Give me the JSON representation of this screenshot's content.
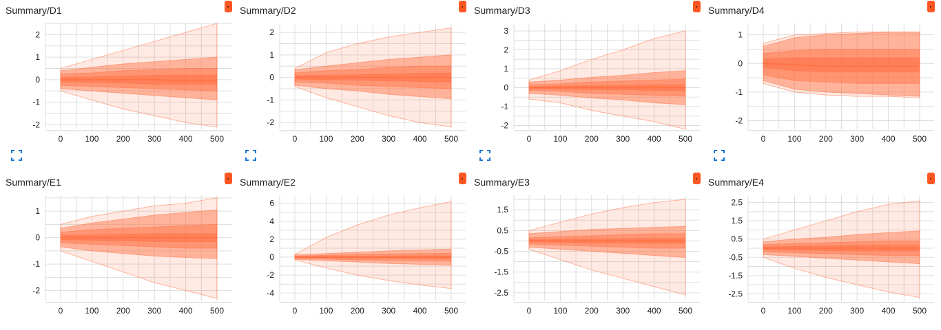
{
  "colors": {
    "accent": "#ff7043",
    "badge": "#ff5722",
    "expand_icon": "#1976d2",
    "grid": "#dddddd"
  },
  "icons": {
    "badge": "orange-run-badge",
    "expand": "fullscreen-expand-icon"
  },
  "panels": [
    {
      "title": "Summary/D1",
      "x_ticks": [
        "0",
        "100",
        "200",
        "300",
        "400",
        "500"
      ],
      "y_ticks": [
        "2",
        "1",
        "0",
        "-1",
        "-2"
      ]
    },
    {
      "title": "Summary/D2",
      "x_ticks": [
        "0",
        "100",
        "200",
        "300",
        "400",
        "500"
      ],
      "y_ticks": [
        "2",
        "1",
        "0",
        "-1",
        "-2"
      ]
    },
    {
      "title": "Summary/D3",
      "x_ticks": [
        "0",
        "100",
        "200",
        "300",
        "400",
        "500"
      ],
      "y_ticks": [
        "3",
        "2",
        "1",
        "0",
        "-1",
        "-2"
      ]
    },
    {
      "title": "Summary/D4",
      "x_ticks": [
        "0",
        "100",
        "200",
        "300",
        "400",
        "500"
      ],
      "y_ticks": [
        "1",
        "0",
        "-1",
        "-2"
      ]
    },
    {
      "title": "Summary/E1",
      "x_ticks": [
        "0",
        "100",
        "200",
        "300",
        "400",
        "500"
      ],
      "y_ticks": [
        "1",
        "0",
        "-1",
        "-2"
      ]
    },
    {
      "title": "Summary/E2",
      "x_ticks": [
        "0",
        "100",
        "200",
        "300",
        "400",
        "500"
      ],
      "y_ticks": [
        "6",
        "4",
        "2",
        "0",
        "-2",
        "-4"
      ]
    },
    {
      "title": "Summary/E3",
      "x_ticks": [
        "0",
        "100",
        "200",
        "300",
        "400",
        "500"
      ],
      "y_ticks": [
        "1.5",
        "0.5",
        "-0.5",
        "-1.5",
        "-2.5"
      ]
    },
    {
      "title": "Summary/E4",
      "x_ticks": [
        "0",
        "100",
        "200",
        "300",
        "400",
        "500"
      ],
      "y_ticks": [
        "2.5",
        "1.5",
        "0.5",
        "-0.5",
        "-1.5",
        "-2.5"
      ]
    }
  ],
  "chart_data": [
    {
      "type": "area",
      "title": "Summary/D1",
      "x": [
        0,
        100,
        200,
        300,
        400,
        500
      ],
      "xlim": [
        0,
        500
      ],
      "ylim": [
        -2.2,
        2.5
      ],
      "y_ticks": [
        2,
        1,
        0,
        -1,
        -2
      ],
      "bands": [
        {
          "lower": [
            -0.5,
            -0.9,
            -1.3,
            -1.6,
            -1.9,
            -2.1
          ],
          "upper": [
            0.5,
            0.9,
            1.3,
            1.7,
            2.1,
            2.5
          ]
        },
        {
          "lower": [
            -0.4,
            -0.5,
            -0.6,
            -0.7,
            -0.8,
            -0.9
          ],
          "upper": [
            0.4,
            0.55,
            0.7,
            0.8,
            0.9,
            1.0
          ]
        },
        {
          "lower": [
            -0.25,
            -0.3,
            -0.35,
            -0.4,
            -0.45,
            -0.5
          ],
          "upper": [
            0.25,
            0.3,
            0.4,
            0.45,
            0.5,
            0.5
          ]
        },
        {
          "lower": [
            -0.1,
            -0.12,
            -0.15,
            -0.2,
            -0.2,
            -0.2
          ],
          "upper": [
            0.1,
            0.12,
            0.15,
            0.2,
            0.2,
            0.2
          ]
        }
      ],
      "median": [
        0,
        0,
        0,
        0,
        -0.05,
        -0.05
      ]
    },
    {
      "type": "area",
      "title": "Summary/D2",
      "x": [
        0,
        100,
        200,
        300,
        400,
        500
      ],
      "xlim": [
        0,
        500
      ],
      "ylim": [
        -2.3,
        2.4
      ],
      "y_ticks": [
        2,
        1,
        0,
        -1,
        -2
      ],
      "bands": [
        {
          "lower": [
            -0.4,
            -0.9,
            -1.3,
            -1.7,
            -2.0,
            -2.2
          ],
          "upper": [
            0.4,
            1.1,
            1.5,
            1.8,
            2.0,
            2.2
          ]
        },
        {
          "lower": [
            -0.35,
            -0.5,
            -0.6,
            -0.75,
            -0.85,
            -0.95
          ],
          "upper": [
            0.35,
            0.5,
            0.65,
            0.8,
            0.9,
            1.0
          ]
        },
        {
          "lower": [
            -0.2,
            -0.25,
            -0.35,
            -0.4,
            -0.45,
            -0.5
          ],
          "upper": [
            0.2,
            0.3,
            0.35,
            0.45,
            0.5,
            0.5
          ]
        },
        {
          "lower": [
            -0.08,
            -0.1,
            -0.12,
            -0.15,
            -0.18,
            -0.2
          ],
          "upper": [
            0.08,
            0.1,
            0.12,
            0.15,
            0.18,
            0.2
          ]
        }
      ],
      "median": [
        0,
        0,
        0,
        0,
        0,
        0
      ]
    },
    {
      "type": "area",
      "title": "Summary/D3",
      "x": [
        0,
        100,
        200,
        300,
        400,
        500
      ],
      "xlim": [
        0,
        500
      ],
      "ylim": [
        -2.2,
        3.4
      ],
      "y_ticks": [
        3,
        2,
        1,
        0,
        -1,
        -2
      ],
      "bands": [
        {
          "lower": [
            -0.6,
            -0.8,
            -1.2,
            -1.5,
            -1.8,
            -2.2
          ],
          "upper": [
            0.4,
            0.9,
            1.5,
            2.0,
            2.6,
            3.0
          ]
        },
        {
          "lower": [
            -0.3,
            -0.4,
            -0.55,
            -0.65,
            -0.8,
            -0.9
          ],
          "upper": [
            0.3,
            0.4,
            0.55,
            0.65,
            0.8,
            0.9
          ]
        },
        {
          "lower": [
            -0.15,
            -0.2,
            -0.3,
            -0.35,
            -0.4,
            -0.45
          ],
          "upper": [
            0.15,
            0.2,
            0.3,
            0.35,
            0.4,
            0.45
          ]
        },
        {
          "lower": [
            -0.05,
            -0.08,
            -0.1,
            -0.12,
            -0.15,
            -0.15
          ],
          "upper": [
            0.05,
            0.08,
            0.1,
            0.12,
            0.15,
            0.15
          ]
        }
      ],
      "median": [
        0,
        0,
        0,
        0,
        0,
        0
      ]
    },
    {
      "type": "area",
      "title": "Summary/D4",
      "x": [
        0,
        100,
        200,
        300,
        400,
        500
      ],
      "xlim": [
        0,
        500
      ],
      "ylim": [
        -2.3,
        1.4
      ],
      "y_ticks": [
        1,
        0,
        -1,
        -2
      ],
      "bands": [
        {
          "lower": [
            -0.7,
            -1.0,
            -1.1,
            -1.15,
            -1.15,
            -1.2
          ],
          "upper": [
            0.7,
            1.0,
            1.05,
            1.1,
            1.1,
            1.1
          ]
        },
        {
          "lower": [
            -0.6,
            -0.9,
            -1.0,
            -1.05,
            -1.1,
            -1.15
          ],
          "upper": [
            0.6,
            0.9,
            1.0,
            1.05,
            1.1,
            1.1
          ]
        },
        {
          "lower": [
            -0.4,
            -0.6,
            -0.65,
            -0.7,
            -0.7,
            -0.7
          ],
          "upper": [
            0.35,
            0.45,
            0.5,
            0.5,
            0.5,
            0.5
          ]
        },
        {
          "lower": [
            -0.15,
            -0.25,
            -0.3,
            -0.3,
            -0.3,
            -0.3
          ],
          "upper": [
            0.15,
            0.2,
            0.2,
            0.2,
            0.2,
            0.2
          ]
        }
      ],
      "median": [
        0,
        -0.05,
        -0.1,
        -0.1,
        -0.1,
        -0.1
      ]
    },
    {
      "type": "area",
      "title": "Summary/E1",
      "x": [
        0,
        100,
        200,
        300,
        400,
        500
      ],
      "xlim": [
        0,
        500
      ],
      "ylim": [
        -2.4,
        1.6
      ],
      "y_ticks": [
        1,
        0,
        -1,
        -2
      ],
      "bands": [
        {
          "lower": [
            -0.5,
            -0.9,
            -1.3,
            -1.7,
            -2.0,
            -2.3
          ],
          "upper": [
            0.5,
            0.8,
            1.0,
            1.2,
            1.3,
            1.5
          ]
        },
        {
          "lower": [
            -0.35,
            -0.5,
            -0.6,
            -0.7,
            -0.75,
            -0.8
          ],
          "upper": [
            0.35,
            0.55,
            0.7,
            0.85,
            0.95,
            1.05
          ]
        },
        {
          "lower": [
            -0.2,
            -0.25,
            -0.3,
            -0.35,
            -0.4,
            -0.4
          ],
          "upper": [
            0.2,
            0.3,
            0.35,
            0.4,
            0.45,
            0.5
          ]
        },
        {
          "lower": [
            -0.08,
            -0.1,
            -0.12,
            -0.15,
            -0.15,
            -0.15
          ],
          "upper": [
            0.08,
            0.1,
            0.12,
            0.15,
            0.15,
            0.15
          ]
        }
      ],
      "median": [
        0,
        0,
        0,
        0,
        0,
        0
      ]
    },
    {
      "type": "area",
      "title": "Summary/E2",
      "x": [
        0,
        100,
        200,
        300,
        400,
        500
      ],
      "xlim": [
        0,
        500
      ],
      "ylim": [
        -4.9,
        6.9
      ],
      "y_ticks": [
        6,
        4,
        2,
        0,
        -2,
        -4
      ],
      "bands": [
        {
          "lower": [
            -0.3,
            -1.2,
            -2.0,
            -2.6,
            -3.1,
            -3.5
          ],
          "upper": [
            0.3,
            2.2,
            3.6,
            4.7,
            5.5,
            6.2
          ]
        },
        {
          "lower": [
            -0.25,
            -0.4,
            -0.55,
            -0.7,
            -0.8,
            -0.9
          ],
          "upper": [
            0.25,
            0.4,
            0.55,
            0.7,
            0.8,
            0.9
          ]
        },
        {
          "lower": [
            -0.12,
            -0.2,
            -0.3,
            -0.35,
            -0.4,
            -0.45
          ],
          "upper": [
            0.12,
            0.2,
            0.3,
            0.35,
            0.4,
            0.45
          ]
        },
        {
          "lower": [
            -0.05,
            -0.07,
            -0.1,
            -0.12,
            -0.14,
            -0.15
          ],
          "upper": [
            0.05,
            0.07,
            0.1,
            0.12,
            0.14,
            0.15
          ]
        }
      ],
      "median": [
        0,
        0,
        0,
        0,
        0,
        0
      ]
    },
    {
      "type": "area",
      "title": "Summary/E3",
      "x": [
        0,
        100,
        200,
        300,
        400,
        500
      ],
      "xlim": [
        0,
        500
      ],
      "ylim": [
        -2.9,
        2.2
      ],
      "y_ticks": [
        1.5,
        0.5,
        -0.5,
        -1.5,
        -2.5
      ],
      "bands": [
        {
          "lower": [
            -0.4,
            -0.9,
            -1.4,
            -1.8,
            -2.2,
            -2.6
          ],
          "upper": [
            0.5,
            0.9,
            1.3,
            1.6,
            1.85,
            2.0
          ]
        },
        {
          "lower": [
            -0.3,
            -0.4,
            -0.5,
            -0.6,
            -0.7,
            -0.8
          ],
          "upper": [
            0.35,
            0.45,
            0.55,
            0.6,
            0.65,
            0.7
          ]
        },
        {
          "lower": [
            -0.15,
            -0.2,
            -0.25,
            -0.3,
            -0.35,
            -0.35
          ],
          "upper": [
            0.15,
            0.2,
            0.25,
            0.3,
            0.35,
            0.35
          ]
        },
        {
          "lower": [
            -0.05,
            -0.07,
            -0.1,
            -0.1,
            -0.12,
            -0.12
          ],
          "upper": [
            0.05,
            0.07,
            0.1,
            0.1,
            0.12,
            0.12
          ]
        }
      ],
      "median": [
        0,
        0,
        0,
        0,
        0,
        0
      ]
    },
    {
      "type": "area",
      "title": "Summary/E4",
      "x": [
        0,
        100,
        200,
        300,
        400,
        500
      ],
      "xlim": [
        0,
        500
      ],
      "ylim": [
        -2.9,
        2.9
      ],
      "y_ticks": [
        2.5,
        1.5,
        0.5,
        -0.5,
        -1.5,
        -2.5
      ],
      "bands": [
        {
          "lower": [
            -0.5,
            -1.1,
            -1.6,
            -2.0,
            -2.4,
            -2.7
          ],
          "upper": [
            0.5,
            1.0,
            1.5,
            2.0,
            2.4,
            2.6
          ]
        },
        {
          "lower": [
            -0.35,
            -0.45,
            -0.55,
            -0.65,
            -0.75,
            -0.85
          ],
          "upper": [
            0.35,
            0.5,
            0.6,
            0.75,
            0.85,
            0.95
          ]
        },
        {
          "lower": [
            -0.2,
            -0.25,
            -0.3,
            -0.35,
            -0.4,
            -0.4
          ],
          "upper": [
            0.2,
            0.25,
            0.3,
            0.35,
            0.4,
            0.4
          ]
        },
        {
          "lower": [
            -0.07,
            -0.1,
            -0.12,
            -0.15,
            -0.15,
            -0.15
          ],
          "upper": [
            0.07,
            0.1,
            0.12,
            0.15,
            0.15,
            0.15
          ]
        }
      ],
      "median": [
        0,
        0,
        0,
        0,
        0,
        0
      ]
    }
  ]
}
